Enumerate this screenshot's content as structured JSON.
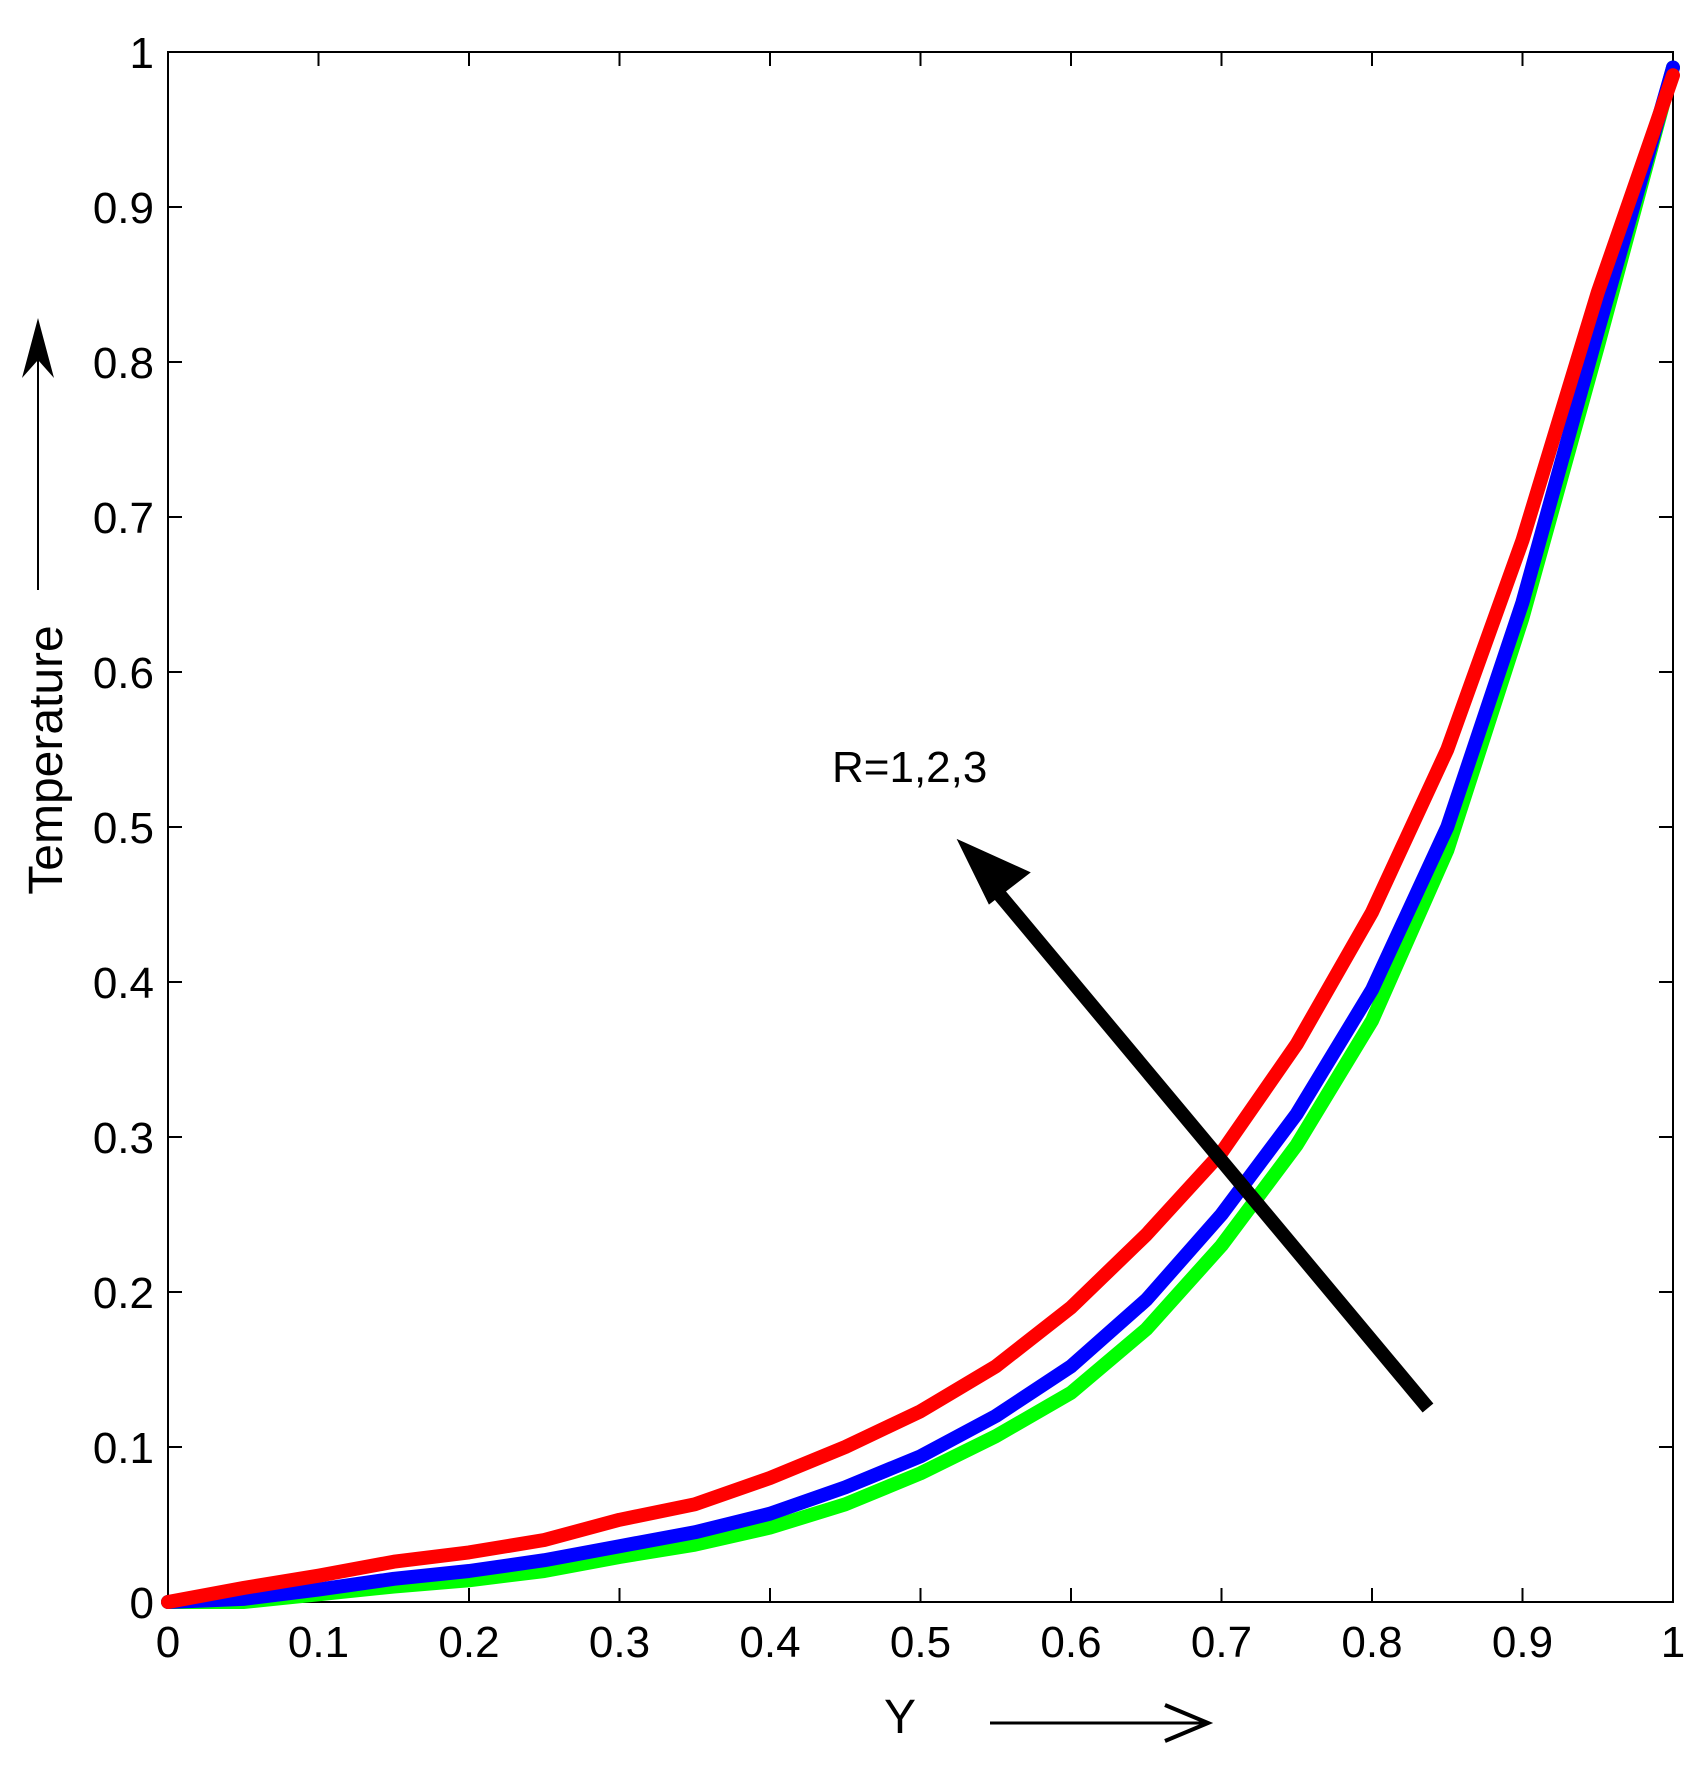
{
  "chart_data": {
    "type": "line",
    "xlabel": "Y",
    "ylabel": "Temperature",
    "xlim": [
      0,
      1
    ],
    "ylim": [
      0,
      1
    ],
    "xticks": [
      "0",
      "0.1",
      "0.2",
      "0.3",
      "0.4",
      "0.5",
      "0.6",
      "0.7",
      "0.8",
      "0.9",
      "1"
    ],
    "yticks": [
      "0",
      "0.1",
      "0.2",
      "0.3",
      "0.4",
      "0.5",
      "0.6",
      "0.7",
      "0.8",
      "0.9",
      "1"
    ],
    "grid": false,
    "annotation": "R=1,2,3",
    "x": [
      0,
      0.05,
      0.1,
      0.15,
      0.2,
      0.25,
      0.3,
      0.35,
      0.4,
      0.45,
      0.5,
      0.55,
      0.6,
      0.65,
      0.7,
      0.75,
      0.8,
      0.85,
      0.9,
      0.95,
      1.0
    ],
    "series": [
      {
        "color": "#00ff00",
        "values": [
          0.0,
          0.0,
          0.005,
          0.01,
          0.014,
          0.02,
          0.029,
          0.037,
          0.048,
          0.063,
          0.083,
          0.107,
          0.135,
          0.176,
          0.23,
          0.295,
          0.375,
          0.485,
          0.635,
          0.81,
          0.99
        ]
      },
      {
        "color": "#0000ff",
        "values": [
          0.0,
          0.002,
          0.008,
          0.015,
          0.02,
          0.027,
          0.036,
          0.045,
          0.057,
          0.074,
          0.094,
          0.12,
          0.152,
          0.195,
          0.25,
          0.315,
          0.395,
          0.5,
          0.645,
          0.82,
          0.99
        ]
      },
      {
        "color": "#ff0000",
        "values": [
          0.0,
          0.009,
          0.017,
          0.026,
          0.032,
          0.04,
          0.053,
          0.063,
          0.08,
          0.1,
          0.123,
          0.152,
          0.19,
          0.237,
          0.29,
          0.36,
          0.445,
          0.55,
          0.685,
          0.845,
          0.985
        ]
      }
    ]
  }
}
